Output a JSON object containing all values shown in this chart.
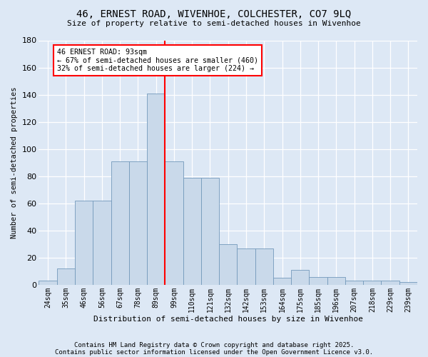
{
  "title1": "46, ERNEST ROAD, WIVENHOE, COLCHESTER, CO7 9LQ",
  "title2": "Size of property relative to semi-detached houses in Wivenhoe",
  "xlabel": "Distribution of semi-detached houses by size in Wivenhoe",
  "ylabel": "Number of semi-detached properties",
  "bar_labels": [
    "24sqm",
    "35sqm",
    "46sqm",
    "56sqm",
    "67sqm",
    "78sqm",
    "89sqm",
    "99sqm",
    "110sqm",
    "121sqm",
    "132sqm",
    "142sqm",
    "153sqm",
    "164sqm",
    "175sqm",
    "185sqm",
    "196sqm",
    "207sqm",
    "218sqm",
    "229sqm",
    "239sqm"
  ],
  "bar_values": [
    3,
    12,
    62,
    62,
    91,
    91,
    141,
    91,
    79,
    79,
    30,
    27,
    27,
    5,
    11,
    6,
    6,
    3,
    3,
    3,
    2
  ],
  "bar_color": "#c9d9ea",
  "bar_edge_color": "#7399bb",
  "annotation_title": "46 ERNEST ROAD: 93sqm",
  "annotation_line1": "← 67% of semi-detached houses are smaller (460)",
  "annotation_line2": "32% of semi-detached houses are larger (224) →",
  "vline_x_index": 7,
  "vline_color": "red",
  "footer1": "Contains HM Land Registry data © Crown copyright and database right 2025.",
  "footer2": "Contains public sector information licensed under the Open Government Licence v3.0.",
  "bg_color": "#dde8f5",
  "ylim": [
    0,
    180
  ],
  "yticks": [
    0,
    20,
    40,
    60,
    80,
    100,
    120,
    140,
    160,
    180
  ]
}
